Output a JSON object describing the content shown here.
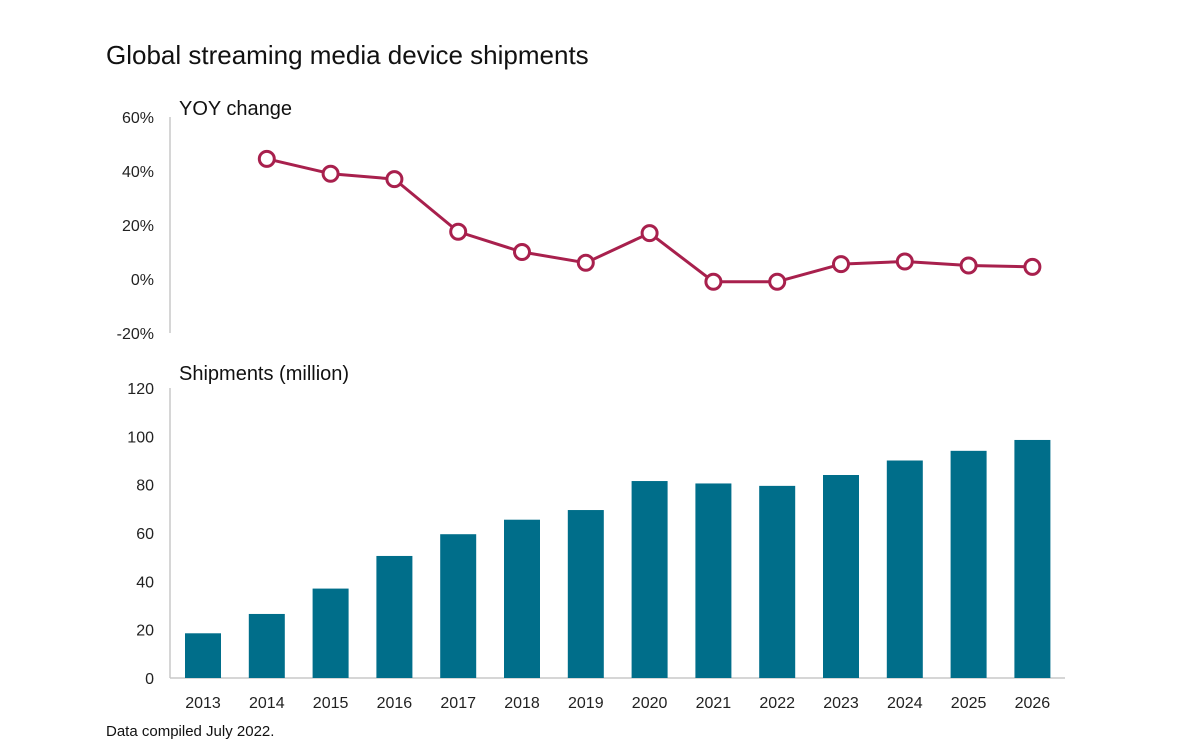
{
  "page": {
    "title": "Global streaming media device shipments",
    "note": "Data compiled July 2022."
  },
  "chart_data": [
    {
      "type": "line",
      "title": "YOY change",
      "categories": [
        "2013",
        "2014",
        "2015",
        "2016",
        "2017",
        "2018",
        "2019",
        "2020",
        "2021",
        "2022",
        "2023",
        "2024",
        "2025",
        "2026"
      ],
      "series": [
        {
          "name": "YOY change",
          "values": [
            null,
            44.5,
            39,
            37,
            17.5,
            10,
            6,
            17,
            -1,
            -1,
            5.5,
            6.5,
            5,
            4.5
          ]
        }
      ],
      "ylim": [
        -20,
        60
      ],
      "yticks": [
        60,
        40,
        20,
        0,
        -20
      ],
      "ytick_labels": [
        "60%",
        "40%",
        "20%",
        "0%",
        "-20%"
      ],
      "color": "#a8204d"
    },
    {
      "type": "bar",
      "title": "Shipments (million)",
      "categories": [
        "2013",
        "2014",
        "2015",
        "2016",
        "2017",
        "2018",
        "2019",
        "2020",
        "2021",
        "2022",
        "2023",
        "2024",
        "2025",
        "2026"
      ],
      "values": [
        18.5,
        26.5,
        37,
        50.5,
        59.5,
        65.5,
        69.5,
        81.5,
        80.5,
        79.5,
        84,
        90,
        94,
        98.5
      ],
      "ylim": [
        0,
        120
      ],
      "yticks": [
        120,
        100,
        80,
        60,
        40,
        20,
        0
      ],
      "ytick_labels": [
        "120",
        "100",
        "80",
        "60",
        "40",
        "20",
        "0"
      ],
      "color": "#006e8a"
    }
  ]
}
